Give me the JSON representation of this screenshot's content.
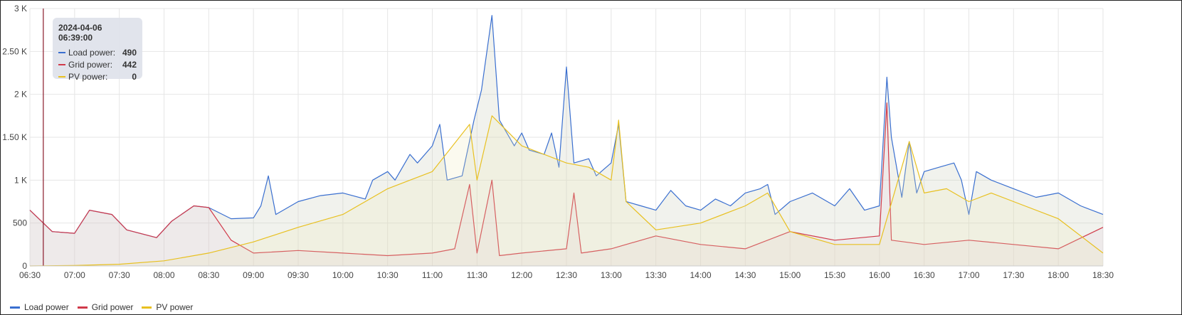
{
  "chart_data": {
    "type": "line",
    "x_ticks": [
      "06:30",
      "07:00",
      "07:30",
      "08:00",
      "08:30",
      "09:00",
      "09:30",
      "10:00",
      "10:30",
      "11:00",
      "11:30",
      "12:00",
      "12:30",
      "13:00",
      "13:30",
      "14:00",
      "14:30",
      "15:00",
      "15:30",
      "16:00",
      "16:30",
      "17:00",
      "17:30",
      "18:00",
      "18:30"
    ],
    "y_ticks": [
      "0",
      "500",
      "1 K",
      "1.50 K",
      "2 K",
      "2.50 K",
      "3 K"
    ],
    "ylim": [
      0,
      3000
    ],
    "grid": true,
    "legend_position": "bottom-left",
    "series": [
      {
        "name": "Load power",
        "color": "#3a6fd0",
        "points": [
          [
            "06:30",
            650
          ],
          [
            "06:45",
            400
          ],
          [
            "07:00",
            380
          ],
          [
            "07:10",
            650
          ],
          [
            "07:25",
            600
          ],
          [
            "07:35",
            420
          ],
          [
            "07:55",
            330
          ],
          [
            "08:05",
            520
          ],
          [
            "08:20",
            700
          ],
          [
            "08:30",
            680
          ],
          [
            "08:45",
            550
          ],
          [
            "09:00",
            560
          ],
          [
            "09:05",
            700
          ],
          [
            "09:10",
            1050
          ],
          [
            "09:15",
            600
          ],
          [
            "09:30",
            750
          ],
          [
            "09:45",
            820
          ],
          [
            "10:00",
            850
          ],
          [
            "10:15",
            780
          ],
          [
            "10:20",
            1000
          ],
          [
            "10:30",
            1100
          ],
          [
            "10:35",
            1000
          ],
          [
            "10:45",
            1300
          ],
          [
            "10:50",
            1200
          ],
          [
            "11:00",
            1400
          ],
          [
            "11:05",
            1650
          ],
          [
            "11:10",
            1000
          ],
          [
            "11:20",
            1050
          ],
          [
            "11:28",
            1700
          ],
          [
            "11:33",
            2050
          ],
          [
            "11:40",
            2920
          ],
          [
            "11:45",
            1700
          ],
          [
            "11:55",
            1400
          ],
          [
            "12:00",
            1550
          ],
          [
            "12:05",
            1350
          ],
          [
            "12:15",
            1300
          ],
          [
            "12:20",
            1550
          ],
          [
            "12:25",
            1150
          ],
          [
            "12:30",
            2320
          ],
          [
            "12:35",
            1200
          ],
          [
            "12:45",
            1250
          ],
          [
            "12:50",
            1050
          ],
          [
            "13:00",
            1200
          ],
          [
            "13:05",
            1650
          ],
          [
            "13:10",
            750
          ],
          [
            "13:20",
            700
          ],
          [
            "13:30",
            650
          ],
          [
            "13:40",
            880
          ],
          [
            "13:50",
            700
          ],
          [
            "14:00",
            650
          ],
          [
            "14:10",
            780
          ],
          [
            "14:20",
            700
          ],
          [
            "14:30",
            850
          ],
          [
            "14:40",
            900
          ],
          [
            "14:45",
            950
          ],
          [
            "14:50",
            600
          ],
          [
            "15:00",
            750
          ],
          [
            "15:15",
            850
          ],
          [
            "15:30",
            700
          ],
          [
            "15:40",
            900
          ],
          [
            "15:50",
            650
          ],
          [
            "16:00",
            700
          ],
          [
            "16:05",
            2200
          ],
          [
            "16:08",
            1500
          ],
          [
            "16:15",
            800
          ],
          [
            "16:20",
            1450
          ],
          [
            "16:25",
            850
          ],
          [
            "16:30",
            1100
          ],
          [
            "16:40",
            1150
          ],
          [
            "16:50",
            1200
          ],
          [
            "16:55",
            1000
          ],
          [
            "17:00",
            600
          ],
          [
            "17:05",
            1100
          ],
          [
            "17:15",
            1000
          ],
          [
            "17:30",
            900
          ],
          [
            "17:45",
            800
          ],
          [
            "18:00",
            850
          ],
          [
            "18:15",
            700
          ],
          [
            "18:30",
            600
          ]
        ]
      },
      {
        "name": "Grid power",
        "color": "#d03a4a",
        "points": [
          [
            "06:30",
            650
          ],
          [
            "06:45",
            400
          ],
          [
            "07:00",
            380
          ],
          [
            "07:10",
            650
          ],
          [
            "07:25",
            600
          ],
          [
            "07:35",
            420
          ],
          [
            "07:55",
            330
          ],
          [
            "08:05",
            520
          ],
          [
            "08:20",
            700
          ],
          [
            "08:30",
            680
          ],
          [
            "08:45",
            300
          ],
          [
            "09:00",
            150
          ],
          [
            "09:30",
            180
          ],
          [
            "10:00",
            150
          ],
          [
            "10:30",
            120
          ],
          [
            "11:00",
            150
          ],
          [
            "11:15",
            200
          ],
          [
            "11:25",
            950
          ],
          [
            "11:30",
            150
          ],
          [
            "11:40",
            1000
          ],
          [
            "11:45",
            120
          ],
          [
            "12:00",
            150
          ],
          [
            "12:30",
            200
          ],
          [
            "12:35",
            850
          ],
          [
            "12:40",
            150
          ],
          [
            "13:00",
            200
          ],
          [
            "13:30",
            350
          ],
          [
            "14:00",
            250
          ],
          [
            "14:30",
            200
          ],
          [
            "15:00",
            400
          ],
          [
            "15:30",
            300
          ],
          [
            "16:00",
            350
          ],
          [
            "16:05",
            1900
          ],
          [
            "16:08",
            300
          ],
          [
            "16:30",
            250
          ],
          [
            "17:00",
            300
          ],
          [
            "17:30",
            250
          ],
          [
            "18:00",
            200
          ],
          [
            "18:30",
            450
          ]
        ]
      },
      {
        "name": "PV power",
        "color": "#e8c020",
        "points": [
          [
            "06:30",
            0
          ],
          [
            "07:00",
            5
          ],
          [
            "07:30",
            20
          ],
          [
            "08:00",
            60
          ],
          [
            "08:30",
            150
          ],
          [
            "09:00",
            280
          ],
          [
            "09:30",
            450
          ],
          [
            "10:00",
            600
          ],
          [
            "10:30",
            900
          ],
          [
            "11:00",
            1100
          ],
          [
            "11:25",
            1650
          ],
          [
            "11:30",
            1000
          ],
          [
            "11:40",
            1750
          ],
          [
            "12:00",
            1400
          ],
          [
            "12:30",
            1200
          ],
          [
            "12:45",
            1150
          ],
          [
            "13:00",
            1000
          ],
          [
            "13:05",
            1700
          ],
          [
            "13:10",
            750
          ],
          [
            "13:30",
            420
          ],
          [
            "14:00",
            500
          ],
          [
            "14:30",
            700
          ],
          [
            "14:45",
            850
          ],
          [
            "15:00",
            400
          ],
          [
            "15:30",
            250
          ],
          [
            "16:00",
            250
          ],
          [
            "16:20",
            1450
          ],
          [
            "16:30",
            850
          ],
          [
            "16:45",
            900
          ],
          [
            "17:00",
            750
          ],
          [
            "17:15",
            850
          ],
          [
            "17:30",
            750
          ],
          [
            "18:00",
            550
          ],
          [
            "18:30",
            150
          ]
        ]
      }
    ],
    "annotation": {
      "marker_time": "06:39",
      "tooltip": {
        "title": "2024-04-06 06:39:00",
        "rows": [
          {
            "name": "Load power:",
            "value": "490",
            "color": "#3a6fd0"
          },
          {
            "name": "Grid power:",
            "value": "442",
            "color": "#d03a4a"
          },
          {
            "name": "PV power:",
            "value": "0",
            "color": "#e8c020"
          }
        ]
      }
    }
  },
  "legend": [
    {
      "label": "Load power",
      "color": "#3a6fd0"
    },
    {
      "label": "Grid power",
      "color": "#d03a4a"
    },
    {
      "label": "PV power",
      "color": "#e8c020"
    }
  ]
}
